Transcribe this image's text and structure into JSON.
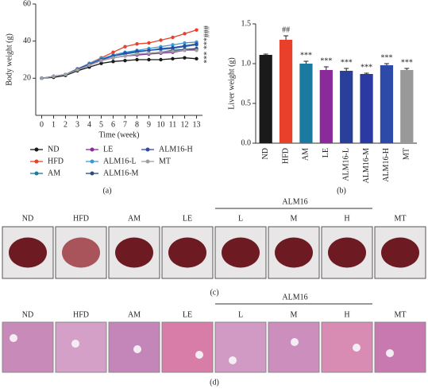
{
  "chart_data": [
    {
      "type": "line",
      "caption": "(a)",
      "xlabel": "Time (week)",
      "ylabel": "Body weight (g)",
      "x": [
        0,
        1,
        2,
        3,
        4,
        5,
        6,
        7,
        8,
        9,
        10,
        11,
        12,
        13
      ],
      "xlim": [
        -0.5,
        13.5
      ],
      "xticks": [
        0,
        1,
        2,
        3,
        4,
        5,
        6,
        7,
        8,
        9,
        10,
        11,
        12,
        13
      ],
      "ylim": [
        0,
        60
      ],
      "yticks": [
        20,
        40,
        60
      ],
      "annotation": "*** ***###",
      "series": [
        {
          "name": "ND",
          "color": "#1a1a1a",
          "values": [
            20,
            20.5,
            21.5,
            24,
            26,
            28,
            29,
            29.5,
            30,
            30,
            30,
            30.5,
            31,
            30.5
          ]
        },
        {
          "name": "HFD",
          "color": "#e8402a",
          "values": [
            20,
            21,
            22,
            25,
            28,
            31,
            34,
            37,
            38.5,
            39,
            40.5,
            42,
            44,
            46
          ]
        },
        {
          "name": "AM",
          "color": "#1a7aa0",
          "values": [
            20,
            21,
            22,
            25,
            27,
            30,
            32,
            33,
            34,
            35,
            35.5,
            36,
            37,
            38
          ]
        },
        {
          "name": "LE",
          "color": "#8b2a9a",
          "values": [
            20,
            21,
            22,
            24.5,
            27,
            29.5,
            31,
            32,
            32.5,
            33,
            33.5,
            34,
            35,
            35.5
          ]
        },
        {
          "name": "ALM16-L",
          "color": "#3a9ad8",
          "values": [
            20,
            21,
            22,
            25,
            28,
            30.5,
            32.5,
            34,
            35,
            36,
            37,
            38,
            39,
            39.5
          ]
        },
        {
          "name": "ALM16-M",
          "color": "#2a4a80",
          "values": [
            20,
            21,
            22,
            24.5,
            27,
            29.5,
            31,
            32,
            33,
            33.5,
            34,
            35,
            35.5,
            36
          ]
        },
        {
          "name": "ALM16-H",
          "color": "#2e4aa8",
          "values": [
            20,
            21,
            22,
            25,
            27.5,
            30,
            32,
            33.5,
            34.5,
            35,
            36,
            36.5,
            37.5,
            38.5
          ]
        },
        {
          "name": "MT",
          "color": "#a0a0a0",
          "values": [
            20,
            21,
            22,
            24.5,
            27,
            29.5,
            31,
            32,
            33,
            33.5,
            34,
            34.5,
            35,
            35
          ]
        }
      ]
    },
    {
      "type": "bar",
      "caption": "(b)",
      "ylabel": "Liver weight (g)",
      "categories": [
        "ND",
        "HFD",
        "AM",
        "LE",
        "ALM16-L",
        "ALM16-M",
        "ALM16-H",
        "MT"
      ],
      "values": [
        1.11,
        1.3,
        1.0,
        0.92,
        0.91,
        0.87,
        0.98,
        0.92
      ],
      "errors": [
        0.01,
        0.05,
        0.03,
        0.04,
        0.03,
        0.01,
        0.02,
        0.02
      ],
      "significance": [
        null,
        "##",
        "***",
        "***",
        "***",
        "***",
        "***",
        "***"
      ],
      "colors": [
        "#1a1a1a",
        "#e8402a",
        "#1a7aa0",
        "#8b2a9a",
        "#2a3f9a",
        "#2a3aa0",
        "#2e4aa8",
        "#999999"
      ],
      "ylim": [
        0,
        1.5
      ],
      "yticks": [
        {
          "value": 0,
          "label": "0.0"
        },
        {
          "value": 0.5,
          "label": "0.5"
        },
        {
          "value": 1,
          "label": "1.0"
        },
        {
          "value": 1.5,
          "label": "1.5"
        }
      ]
    }
  ],
  "photo_panels": {
    "labels": [
      "ND",
      "HFD",
      "AM",
      "LE",
      "L",
      "M",
      "H",
      "MT"
    ],
    "group": "ALM16",
    "captions": [
      "(c)",
      "(d)"
    ]
  }
}
